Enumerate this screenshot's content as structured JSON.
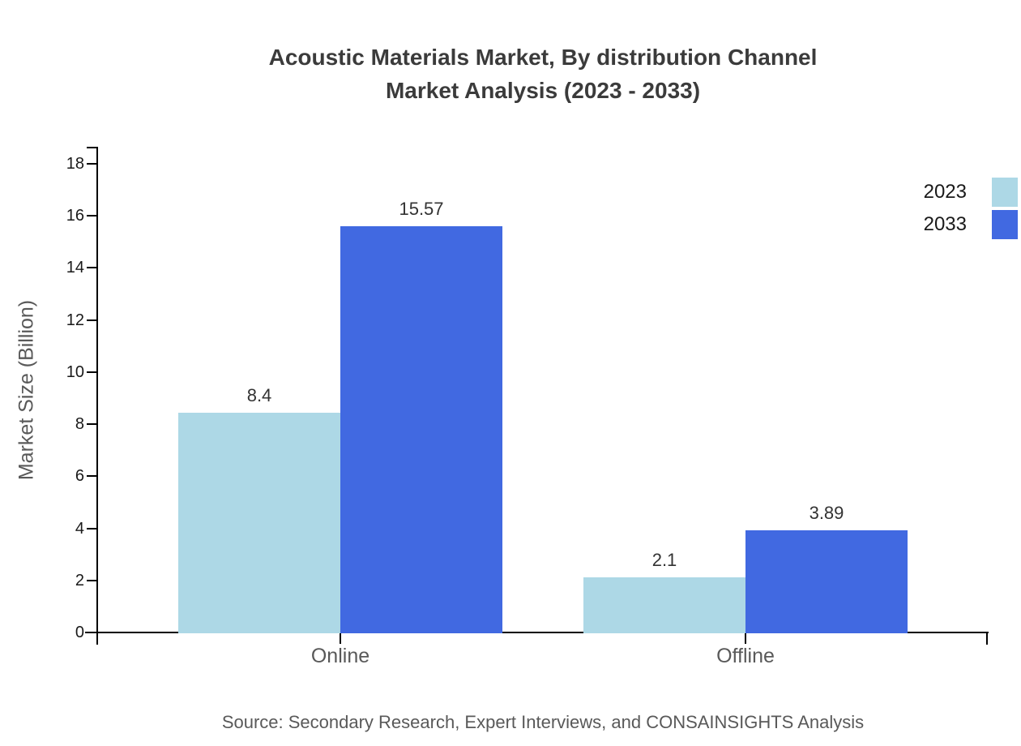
{
  "title": {
    "line1": "Acoustic Materials Market, By distribution Channel",
    "line2": "Market Analysis (2023 - 2033)"
  },
  "chart_data": {
    "type": "bar",
    "title": "Acoustic Materials Market, By distribution Channel Market Analysis (2023 - 2033)",
    "title_lines": [
      "Acoustic Materials Market, By distribution Channel",
      "Market Analysis (2023 - 2033)"
    ],
    "categories": [
      "Online",
      "Offline"
    ],
    "series": [
      {
        "name": "2023",
        "color": "#ADD8E6",
        "values": [
          8.4,
          2.1
        ]
      },
      {
        "name": "2033",
        "color": "#4169E1",
        "values": [
          15.57,
          3.89
        ]
      }
    ],
    "value_labels": [
      [
        "8.4",
        "2.1"
      ],
      [
        "15.57",
        "3.89"
      ]
    ],
    "xlabel": "",
    "ylabel": "Market Size (Billion)",
    "ylim": [
      0,
      18
    ],
    "ytick_step": 2,
    "yticks": [
      0,
      2,
      4,
      6,
      8,
      10,
      12,
      14,
      16,
      18
    ],
    "grid": false,
    "legend_position": "top-right",
    "source": "Source: Secondary Research, Expert Interviews, and CONSAINSIGHTS Analysis"
  }
}
